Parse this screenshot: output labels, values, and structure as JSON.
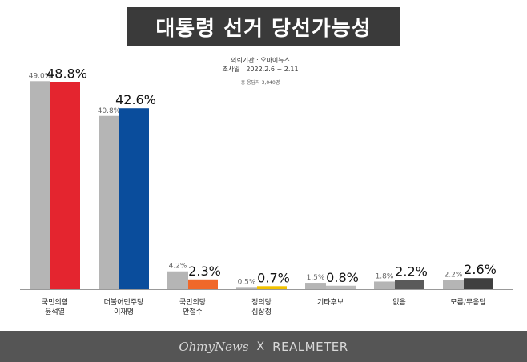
{
  "chart_data": {
    "type": "bar",
    "title": "대통령 선거 당선가능성",
    "categories": [
      [
        "국민의힘",
        "윤석열"
      ],
      [
        "더불어민주당",
        "이재명"
      ],
      [
        "국민의당",
        "안철수"
      ],
      [
        "정의당",
        "심상정"
      ],
      [
        "기타후보"
      ],
      [
        "없음"
      ],
      [
        "모름/무응답"
      ]
    ],
    "series": [
      {
        "values": [
          49.0,
          40.8,
          4.2,
          0.5,
          1.5,
          1.8,
          2.2
        ],
        "labels": [
          "49.0%",
          "40.8%",
          "4.2%",
          "0.5%",
          "1.5%",
          "1.8%",
          "2.2%"
        ],
        "color": "#b5b5b5"
      },
      {
        "values": [
          48.8,
          42.6,
          2.3,
          0.7,
          0.8,
          2.2,
          2.6
        ],
        "labels": [
          "48.8%",
          "42.6%",
          "2.3%",
          "0.7%",
          "0.8%",
          "2.2%",
          "2.6%"
        ],
        "colors": [
          "#e4252f",
          "#0a4d9c",
          "#f0682a",
          "#f2c200",
          "#bcbcbc",
          "#5a5a5a",
          "#3f3f3f"
        ]
      }
    ],
    "ylim": [
      0,
      52
    ],
    "grid": false,
    "legend": "none"
  },
  "survey": {
    "line1": "의뢰기관 : 오마이뉴스",
    "line2": "조사일 : 2022.2.6 ~ 2.11",
    "line3": "총 응답자 3,040명"
  },
  "footer": {
    "brand1": "OhmyNews",
    "separator": "X",
    "brand2": "REALMETER"
  }
}
